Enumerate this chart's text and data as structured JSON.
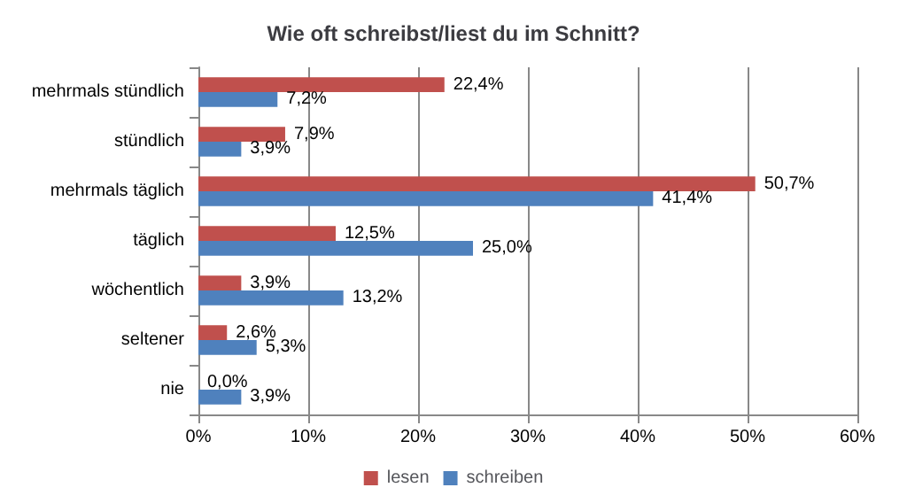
{
  "chart_data": {
    "type": "bar",
    "orientation": "horizontal",
    "title": "Wie oft schreibst/liest du im Schnitt?",
    "categories": [
      "mehrmals stündlich",
      "stündlich",
      "mehrmals täglich",
      "täglich",
      "wöchentlich",
      "seltener",
      "nie"
    ],
    "series": [
      {
        "name": "lesen",
        "color": "#c0504d",
        "values": [
          22.4,
          7.9,
          50.7,
          12.5,
          3.9,
          2.6,
          0.0
        ],
        "value_labels": [
          "22,4%",
          "7,9%",
          "50,7%",
          "12,5%",
          "3,9%",
          "2,6%",
          "0,0%"
        ]
      },
      {
        "name": "schreiben",
        "color": "#4f81bd",
        "values": [
          7.2,
          3.9,
          41.4,
          25.0,
          13.2,
          5.3,
          3.9
        ],
        "value_labels": [
          "7,2%",
          "3,9%",
          "41,4%",
          "25,0%",
          "13,2%",
          "5,3%",
          "3,9%"
        ]
      }
    ],
    "xlim": [
      0,
      60
    ],
    "xticks": [
      {
        "value": 0,
        "label": "0%"
      },
      {
        "value": 10,
        "label": "10%"
      },
      {
        "value": 20,
        "label": "20%"
      },
      {
        "value": 30,
        "label": "30%"
      },
      {
        "value": 40,
        "label": "40%"
      },
      {
        "value": 50,
        "label": "50%"
      },
      {
        "value": 60,
        "label": "60%"
      }
    ],
    "grid": "x",
    "legend": "bottom"
  }
}
